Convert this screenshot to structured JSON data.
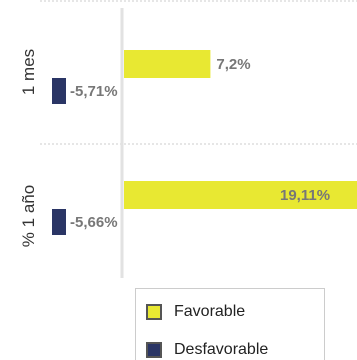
{
  "chart_data": {
    "type": "bar",
    "orientation": "horizontal",
    "categories": [
      "1 mes",
      "% 1 año"
    ],
    "series": [
      {
        "name": "Favorable",
        "color": "#e8e832",
        "values": [
          7.2,
          19.11
        ],
        "labels": [
          "7,2%",
          "19,11%"
        ]
      },
      {
        "name": "Desfavorable",
        "color": "#2a3565",
        "values": [
          -5.71,
          -5.66
        ],
        "labels": [
          "-5,71%",
          "-5,66%"
        ]
      }
    ],
    "grid": true,
    "legend_position": "bottom"
  }
}
